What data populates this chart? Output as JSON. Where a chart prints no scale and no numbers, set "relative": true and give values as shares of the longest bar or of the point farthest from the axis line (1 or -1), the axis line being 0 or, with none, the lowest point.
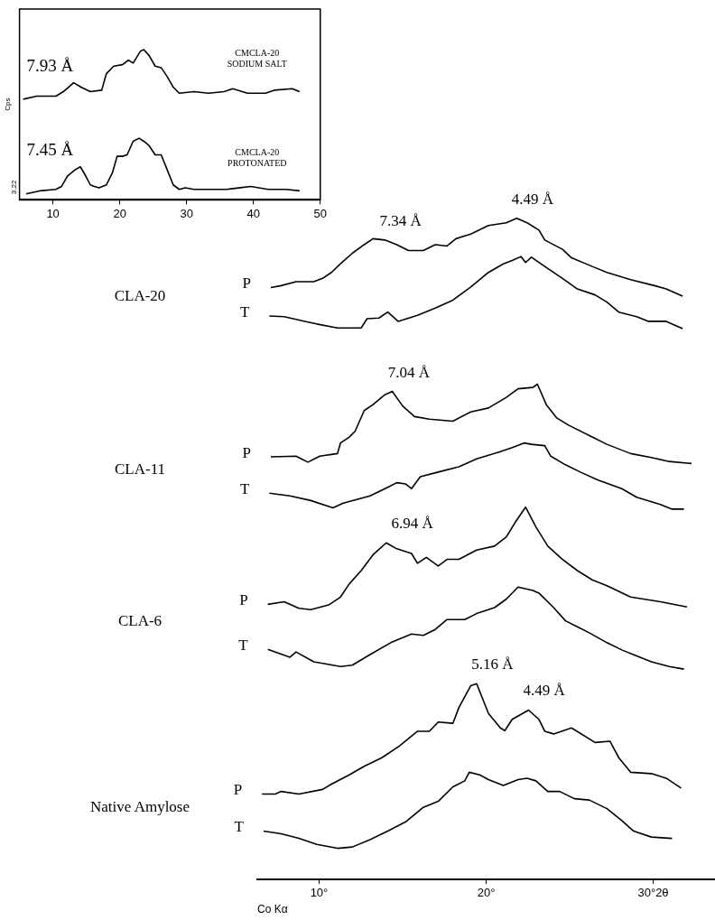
{
  "chart_data": [
    {
      "type": "line",
      "relative": true,
      "ylabel": "Cps",
      "xlim": [
        5,
        50
      ],
      "xticks": [
        10,
        20,
        30,
        40,
        50
      ],
      "grid": false,
      "legend": false,
      "marker": "none",
      "line_style": "solid",
      "annotations": [
        {
          "text": "7.93 Å",
          "x": 13.1,
          "y": 0.78
        },
        {
          "text": "7.45 Å",
          "x": 14.1,
          "y": 0.22
        },
        "3.22"
      ],
      "series": [
        {
          "name": "CMCLA-20 SODIUM SALT",
          "color": "#000000",
          "x": [
            5.56,
            7.56,
            10.44,
            11.56,
            13.1,
            14.2,
            15.6,
            17.3,
            18.0,
            19.1,
            20.4,
            21.3,
            22.0,
            23.1,
            23.6,
            24.4,
            25.3,
            26.2,
            27.1,
            28.0,
            28.9,
            31.1,
            33.3,
            35.6,
            36.9,
            39.1,
            41.8,
            43.1,
            45.8,
            46.9
          ],
          "values": [
            0.67,
            0.69,
            0.69,
            0.72,
            0.78,
            0.75,
            0.72,
            0.73,
            0.84,
            0.89,
            0.9,
            0.93,
            0.91,
            0.99,
            1,
            0.96,
            0.89,
            0.88,
            0.82,
            0.75,
            0.71,
            0.72,
            0.71,
            0.72,
            0.74,
            0.71,
            0.71,
            0.73,
            0.74,
            0.72
          ]
        },
        {
          "name": "CMCLA-20 PROTONATED",
          "color": "#000000",
          "x": [
            6.0,
            8.0,
            10.44,
            11.3,
            12.2,
            13.3,
            14.1,
            14.9,
            15.6,
            16.2,
            16.9,
            18.0,
            18.9,
            19.6,
            20.4,
            21.1,
            22.0,
            22.9,
            23.6,
            24.4,
            25.3,
            26.2,
            27.1,
            28.0,
            28.9,
            29.8,
            31.1,
            33.3,
            36.0,
            37.8,
            39.6,
            42.2,
            44.9,
            46.9
          ],
          "values": [
            0.04,
            0.06,
            0.07,
            0.09,
            0.16,
            0.2,
            0.22,
            0.16,
            0.1,
            0.09,
            0.08,
            0.1,
            0.18,
            0.29,
            0.29,
            0.3,
            0.39,
            0.41,
            0.39,
            0.36,
            0.3,
            0.3,
            0.2,
            0.1,
            0.07,
            0.08,
            0.07,
            0.07,
            0.07,
            0.08,
            0.09,
            0.07,
            0.07,
            0.06
          ]
        }
      ]
    },
    {
      "type": "line",
      "relative": true,
      "xlabel": "Co Kα",
      "xlim": [
        6.3,
        33.7
      ],
      "xticks": [
        {
          "value": 10,
          "label": "10°"
        },
        {
          "value": 20,
          "label": "20°"
        },
        {
          "value": 30,
          "label": "30°2θ"
        }
      ],
      "grid": false,
      "legend": false,
      "marker": "none",
      "line_style": "solid",
      "annotations": [
        {
          "text": "7.34 Å",
          "x": 13.9,
          "y": 0.967
        },
        {
          "text": "4.49 Å",
          "x": 21.8,
          "y": 1
        },
        {
          "text": "7.04 Å",
          "x": 14.4,
          "y": 0.738
        },
        {
          "text": "6.94 Å",
          "x": 14.6,
          "y": 0.509
        },
        {
          "text": "5.16 Å",
          "x": 19.4,
          "y": 0.296
        },
        {
          "text": "4.49 Å",
          "x": 22.5,
          "y": 0.256
        },
        "CLA-20",
        "CLA-11",
        "CLA-6",
        "Native Amylose"
      ],
      "series": [
        {
          "name": "P",
          "color": "#000000",
          "x": [
            7.11,
            7.73,
            8.62,
            9.68,
            10.21,
            10.74,
            11.28,
            11.99,
            12.7,
            13.23,
            13.94,
            14.65,
            15.35,
            16.24,
            16.95,
            17.66,
            18.19,
            19.08,
            20.14,
            21.21,
            21.83,
            22.45,
            23.16,
            23.51,
            24.57,
            25.11,
            26.35,
            27.23,
            28.65,
            30.07,
            30.78,
            31.76
          ],
          "values": [
            0.895,
            0.898,
            0.904,
            0.904,
            0.909,
            0.918,
            0.931,
            0.947,
            0.96,
            0.969,
            0.967,
            0.96,
            0.951,
            0.951,
            0.96,
            0.958,
            0.969,
            0.976,
            0.989,
            0.993,
            1,
            0.993,
            0.982,
            0.967,
            0.953,
            0.94,
            0.927,
            0.918,
            0.907,
            0.898,
            0.893,
            0.882
          ]
        },
        {
          "name": "T",
          "color": "#000000",
          "x": [
            7.02,
            7.91,
            9.15,
            9.86,
            11.1,
            12.52,
            12.87,
            13.58,
            14.11,
            14.73,
            15.89,
            16.95,
            18.01,
            19.08,
            20.14,
            21.03,
            21.56,
            22.09,
            22.36,
            22.71,
            23.51,
            24.57,
            25.46,
            26.52,
            27.23,
            27.94,
            29.01,
            29.72,
            30.78,
            31.76
          ],
          "values": [
            0.852,
            0.851,
            0.844,
            0.84,
            0.834,
            0.834,
            0.848,
            0.849,
            0.858,
            0.844,
            0.853,
            0.864,
            0.876,
            0.896,
            0.918,
            0.931,
            0.936,
            0.942,
            0.933,
            0.941,
            0.927,
            0.909,
            0.893,
            0.884,
            0.873,
            0.858,
            0.851,
            0.844,
            0.844,
            0.833
          ]
        },
        {
          "name": "P",
          "color": "#000000",
          "x": [
            7.11,
            8.62,
            9.33,
            10.04,
            11.1,
            11.28,
            11.81,
            12.16,
            12.7,
            13.23,
            13.94,
            14.38,
            15.0,
            15.71,
            16.6,
            18.01,
            19.08,
            20.14,
            21.21,
            21.91,
            22.8,
            23.07,
            23.6,
            24.22,
            24.93,
            26.35,
            27.23,
            28.65,
            29.89,
            30.96,
            32.29
          ],
          "values": [
            0.639,
            0.64,
            0.631,
            0.64,
            0.644,
            0.66,
            0.669,
            0.678,
            0.709,
            0.718,
            0.733,
            0.738,
            0.716,
            0.7,
            0.696,
            0.693,
            0.707,
            0.713,
            0.729,
            0.742,
            0.744,
            0.749,
            0.718,
            0.698,
            0.687,
            0.669,
            0.658,
            0.644,
            0.638,
            0.632,
            0.629
          ]
        },
        {
          "name": "T",
          "color": "#000000",
          "x": [
            7.02,
            8.26,
            9.5,
            10.83,
            11.45,
            13.05,
            14.11,
            14.65,
            15.18,
            15.53,
            16.06,
            17.13,
            18.37,
            19.43,
            20.85,
            21.56,
            22.27,
            22.71,
            23.51,
            23.87,
            24.75,
            25.64,
            26.7,
            28.12,
            29.01,
            30.43,
            31.13,
            31.84
          ],
          "values": [
            0.584,
            0.58,
            0.573,
            0.562,
            0.569,
            0.58,
            0.593,
            0.6,
            0.598,
            0.591,
            0.609,
            0.616,
            0.624,
            0.636,
            0.647,
            0.653,
            0.66,
            0.658,
            0.656,
            0.64,
            0.627,
            0.616,
            0.604,
            0.591,
            0.578,
            0.567,
            0.56,
            0.56
          ]
        },
        {
          "name": "P",
          "color": "#000000",
          "x": [
            6.93,
            7.91,
            8.79,
            9.5,
            10.57,
            11.28,
            11.81,
            12.52,
            13.23,
            14.02,
            14.65,
            15.53,
            15.89,
            16.42,
            17.13,
            17.66,
            18.37,
            19.43,
            20.5,
            21.21,
            21.74,
            22.36,
            22.98,
            23.69,
            24.57,
            25.46,
            26.35,
            27.23,
            28.65,
            30.43,
            32.02
          ],
          "values": [
            0.416,
            0.42,
            0.41,
            0.408,
            0.415,
            0.427,
            0.447,
            0.467,
            0.491,
            0.509,
            0.5,
            0.493,
            0.478,
            0.487,
            0.474,
            0.484,
            0.484,
            0.498,
            0.504,
            0.518,
            0.54,
            0.563,
            0.533,
            0.504,
            0.484,
            0.467,
            0.453,
            0.444,
            0.427,
            0.42,
            0.412
          ]
        },
        {
          "name": "T",
          "color": "#000000",
          "x": [
            6.93,
            8.26,
            8.62,
            9.68,
            11.28,
            11.99,
            13.05,
            14.29,
            15.53,
            16.24,
            16.95,
            17.66,
            18.72,
            19.43,
            20.5,
            21.21,
            21.91,
            22.8,
            23.16,
            24.04,
            24.75,
            25.46,
            26.17,
            27.23,
            28.12,
            29.01,
            29.89,
            30.96,
            31.84
          ],
          "values": [
            0.348,
            0.336,
            0.344,
            0.329,
            0.322,
            0.324,
            0.34,
            0.358,
            0.371,
            0.369,
            0.378,
            0.393,
            0.393,
            0.402,
            0.411,
            0.424,
            0.442,
            0.437,
            0.433,
            0.411,
            0.391,
            0.382,
            0.373,
            0.358,
            0.347,
            0.338,
            0.329,
            0.322,
            0.318
          ]
        },
        {
          "name": "P",
          "color": "#000000",
          "x": [
            6.58,
            7.38,
            7.73,
            8.79,
            10.21,
            10.74,
            11.81,
            12.7,
            13.76,
            14.82,
            15.89,
            16.6,
            17.13,
            18.01,
            18.37,
            19.08,
            19.43,
            20.14,
            20.85,
            21.12,
            21.56,
            22.54,
            23.16,
            23.51,
            24.04,
            25.11,
            26.52,
            27.41,
            27.94,
            28.65,
            29.89,
            30.78,
            31.67
          ],
          "values": [
            0.129,
            0.129,
            0.133,
            0.129,
            0.136,
            0.144,
            0.158,
            0.171,
            0.184,
            0.202,
            0.224,
            0.224,
            0.238,
            0.236,
            0.26,
            0.293,
            0.296,
            0.251,
            0.229,
            0.225,
            0.242,
            0.256,
            0.242,
            0.224,
            0.22,
            0.229,
            0.207,
            0.209,
            0.184,
            0.162,
            0.16,
            0.153,
            0.138
          ]
        },
        {
          "name": "T",
          "color": "#000000",
          "x": [
            6.67,
            7.73,
            8.79,
            9.86,
            11.1,
            11.99,
            13.05,
            14.11,
            15.18,
            16.24,
            17.13,
            18.01,
            18.72,
            18.99,
            19.61,
            20.14,
            21.03,
            21.91,
            22.45,
            22.98,
            23.69,
            24.4,
            25.28,
            26.17,
            27.23,
            28.12,
            28.83,
            29.89,
            31.13
          ],
          "values": [
            0.073,
            0.069,
            0.062,
            0.053,
            0.047,
            0.049,
            0.06,
            0.073,
            0.087,
            0.109,
            0.118,
            0.14,
            0.149,
            0.162,
            0.158,
            0.151,
            0.142,
            0.151,
            0.153,
            0.149,
            0.133,
            0.133,
            0.122,
            0.12,
            0.107,
            0.089,
            0.073,
            0.064,
            0.062
          ]
        }
      ]
    }
  ]
}
